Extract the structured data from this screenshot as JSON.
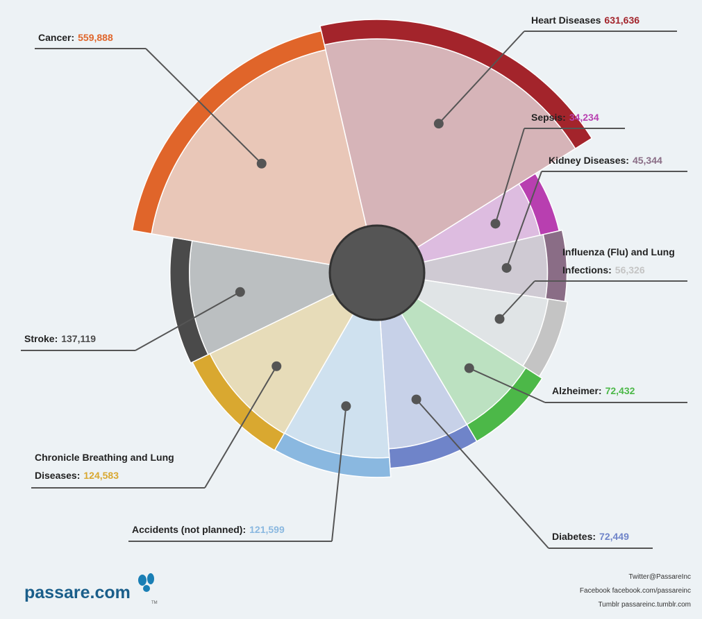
{
  "chart_data": {
    "type": "rose",
    "categories": [
      "Heart Diseases",
      "Sepsis:",
      "Kidney Diseases:",
      "Influenza (Flu) and Lung Infections:",
      "Alzheimer:",
      "Diabetes:",
      "Accidents (not planned):",
      "Chronicle Breathing and Lung Diseases:",
      "Stroke:",
      "Cancer:"
    ],
    "values": [
      631636,
      34234,
      45344,
      56326,
      72432,
      72449,
      121599,
      124583,
      137119,
      559888
    ],
    "value_labels": [
      "631,636",
      "34,234",
      "45,344",
      "56,326",
      "72,432",
      "72,449",
      "121,599",
      "124,583",
      "137,119",
      "559,888"
    ],
    "colors": [
      "#a3242b",
      "#b83fb0",
      "#8a6d86",
      "#c4c4c4",
      "#4cb848",
      "#6f84c9",
      "#8ab8e0",
      "#d9a830",
      "#4a4a4a",
      "#e0652a"
    ]
  },
  "footer": {
    "brand": "passare.com",
    "tm": "TM",
    "twitter": "Twitter@PassareInc",
    "facebook": "Facebook facebook.com/passareinc",
    "tumblr": "Tumblr passareinc.tumblr.com"
  }
}
